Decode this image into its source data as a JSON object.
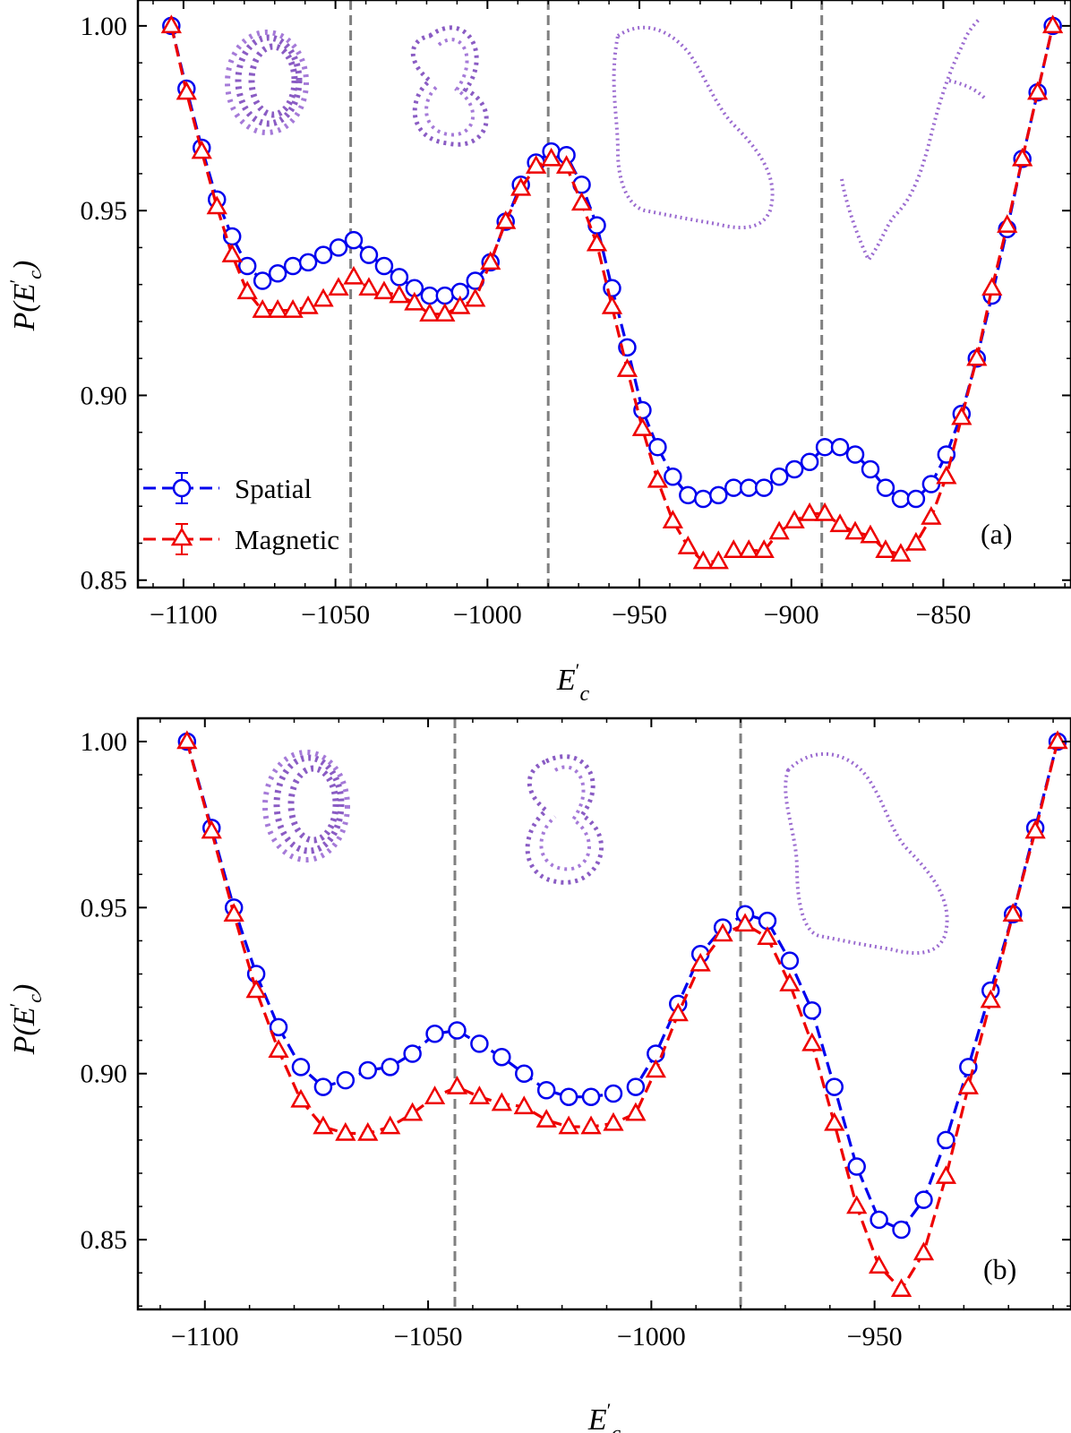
{
  "chart_data": [
    {
      "type": "line",
      "panel_label": "(a)",
      "xlabel": "E′_c",
      "ylabel": "P(E′_c)",
      "xlim": [
        -1115,
        -808
      ],
      "ylim": [
        0.848,
        1.007
      ],
      "xticks": [
        -1100,
        -1050,
        -1000,
        -950,
        -900,
        -850
      ],
      "xtick_labels": [
        "−1100",
        "−1050",
        "−1000",
        "−950",
        "−900",
        "−850"
      ],
      "yticks": [
        0.85,
        0.9,
        0.95,
        1.0
      ],
      "ytick_labels": [
        "0.85",
        "0.90",
        "0.95",
        "1.00"
      ],
      "vlines": [
        -1045,
        -980,
        -890
      ],
      "grid": false,
      "legend_position": "lower-left",
      "series": [
        {
          "name": "Spatial",
          "color": "#0000ee",
          "marker": "circle",
          "x": [
            -1104,
            -1099,
            -1094,
            -1089,
            -1084,
            -1079,
            -1074,
            -1069,
            -1064,
            -1059,
            -1054,
            -1049,
            -1044,
            -1039,
            -1034,
            -1029,
            -1024,
            -1019,
            -1014,
            -1009,
            -1004,
            -999,
            -994,
            -989,
            -984,
            -979,
            -974,
            -969,
            -964,
            -959,
            -954,
            -949,
            -944,
            -939,
            -934,
            -929,
            -924,
            -919,
            -914,
            -909,
            -904,
            -899,
            -894,
            -889,
            -884,
            -879,
            -874,
            -869,
            -864,
            -859,
            -854,
            -849,
            -844,
            -839,
            -834,
            -829,
            -824,
            -819,
            -814
          ],
          "y": [
            1.0,
            0.983,
            0.967,
            0.953,
            0.943,
            0.935,
            0.931,
            0.933,
            0.935,
            0.936,
            0.938,
            0.94,
            0.942,
            0.938,
            0.935,
            0.932,
            0.929,
            0.927,
            0.927,
            0.928,
            0.931,
            0.936,
            0.947,
            0.957,
            0.963,
            0.966,
            0.965,
            0.957,
            0.946,
            0.929,
            0.913,
            0.896,
            0.886,
            0.878,
            0.873,
            0.872,
            0.873,
            0.875,
            0.875,
            0.875,
            0.878,
            0.88,
            0.882,
            0.886,
            0.886,
            0.884,
            0.88,
            0.875,
            0.872,
            0.872,
            0.876,
            0.884,
            0.895,
            0.91,
            0.927,
            0.945,
            0.964,
            0.982,
            1.0
          ]
        },
        {
          "name": "Magnetic",
          "color": "#ee0000",
          "marker": "triangle",
          "x": [
            -1104,
            -1099,
            -1094,
            -1089,
            -1084,
            -1079,
            -1074,
            -1069,
            -1064,
            -1059,
            -1054,
            -1049,
            -1044,
            -1039,
            -1034,
            -1029,
            -1024,
            -1019,
            -1014,
            -1009,
            -1004,
            -999,
            -994,
            -989,
            -984,
            -979,
            -974,
            -969,
            -964,
            -959,
            -954,
            -949,
            -944,
            -939,
            -934,
            -929,
            -924,
            -919,
            -914,
            -909,
            -904,
            -899,
            -894,
            -889,
            -884,
            -879,
            -874,
            -869,
            -864,
            -859,
            -854,
            -849,
            -844,
            -839,
            -834,
            -829,
            -824,
            -819,
            -814
          ],
          "y": [
            1.0,
            0.982,
            0.966,
            0.951,
            0.938,
            0.928,
            0.923,
            0.923,
            0.923,
            0.924,
            0.926,
            0.929,
            0.932,
            0.929,
            0.928,
            0.927,
            0.925,
            0.922,
            0.922,
            0.924,
            0.926,
            0.936,
            0.947,
            0.956,
            0.962,
            0.964,
            0.962,
            0.952,
            0.941,
            0.924,
            0.907,
            0.891,
            0.877,
            0.866,
            0.859,
            0.855,
            0.855,
            0.858,
            0.858,
            0.858,
            0.863,
            0.866,
            0.868,
            0.868,
            0.865,
            0.863,
            0.862,
            0.858,
            0.857,
            0.86,
            0.867,
            0.878,
            0.894,
            0.91,
            0.929,
            0.946,
            0.964,
            0.982,
            1.0
          ]
        }
      ]
    },
    {
      "type": "line",
      "panel_label": "(b)",
      "xlabel": "E′_c",
      "ylabel": "P(E′_c)",
      "xlim": [
        -1115,
        -906
      ],
      "ylim": [
        0.829,
        1.007
      ],
      "xticks": [
        -1100,
        -1050,
        -1000,
        -950
      ],
      "xtick_labels": [
        "−1100",
        "−1050",
        "−1000",
        "−950"
      ],
      "yticks": [
        0.85,
        0.9,
        0.95,
        1.0
      ],
      "ytick_labels": [
        "0.85",
        "0.90",
        "0.95",
        "1.00"
      ],
      "vlines": [
        -1044,
        -980
      ],
      "grid": false,
      "series": [
        {
          "name": "Spatial",
          "color": "#0000ee",
          "marker": "circle",
          "x": [
            -1104,
            -1098.5,
            -1093.5,
            -1088.5,
            -1083.5,
            -1078.5,
            -1073.5,
            -1068.5,
            -1063.5,
            -1058.5,
            -1053.5,
            -1048.5,
            -1043.5,
            -1038.5,
            -1033.5,
            -1028.5,
            -1023.5,
            -1018.5,
            -1013.5,
            -1008.5,
            -1003.5,
            -999,
            -994,
            -989,
            -984,
            -979,
            -974,
            -969,
            -964,
            -959,
            -954,
            -949,
            -944,
            -939,
            -934,
            -929,
            -924,
            -919,
            -914,
            -909
          ],
          "y": [
            1.0,
            0.974,
            0.95,
            0.93,
            0.914,
            0.902,
            0.896,
            0.898,
            0.901,
            0.902,
            0.906,
            0.912,
            0.913,
            0.909,
            0.905,
            0.9,
            0.895,
            0.893,
            0.893,
            0.894,
            0.896,
            0.906,
            0.921,
            0.936,
            0.944,
            0.948,
            0.946,
            0.934,
            0.919,
            0.896,
            0.872,
            0.856,
            0.853,
            0.862,
            0.88,
            0.902,
            0.925,
            0.948,
            0.974,
            1.0
          ]
        },
        {
          "name": "Magnetic",
          "color": "#ee0000",
          "marker": "triangle",
          "x": [
            -1104,
            -1098.5,
            -1093.5,
            -1088.5,
            -1083.5,
            -1078.5,
            -1073.5,
            -1068.5,
            -1063.5,
            -1058.5,
            -1053.5,
            -1048.5,
            -1043.5,
            -1038.5,
            -1033.5,
            -1028.5,
            -1023.5,
            -1018.5,
            -1013.5,
            -1008.5,
            -1003.5,
            -999,
            -994,
            -989,
            -984,
            -979,
            -974,
            -969,
            -964,
            -959,
            -954,
            -949,
            -944,
            -939,
            -934,
            -929,
            -924,
            -919,
            -914,
            -909
          ],
          "y": [
            1.0,
            0.973,
            0.948,
            0.925,
            0.907,
            0.892,
            0.884,
            0.882,
            0.882,
            0.884,
            0.888,
            0.893,
            0.896,
            0.893,
            0.891,
            0.89,
            0.886,
            0.884,
            0.884,
            0.885,
            0.888,
            0.901,
            0.918,
            0.933,
            0.942,
            0.945,
            0.941,
            0.927,
            0.909,
            0.885,
            0.86,
            0.842,
            0.835,
            0.846,
            0.869,
            0.896,
            0.922,
            0.948,
            0.973,
            1.0
          ]
        }
      ]
    }
  ]
}
